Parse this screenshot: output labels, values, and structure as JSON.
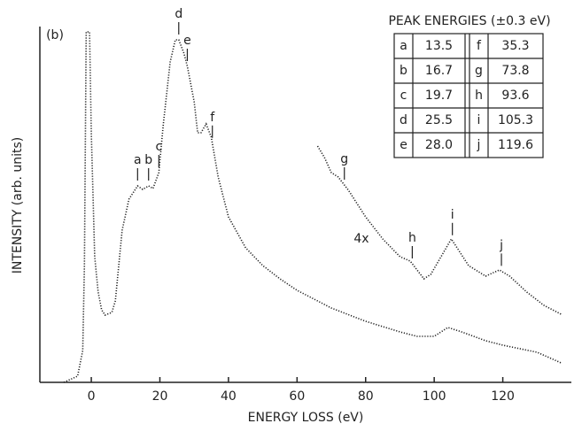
{
  "chart_data": {
    "type": "line",
    "panel_label": "(b)",
    "x_label": "ENERGY LOSS (eV)",
    "y_label": "INTENSITY (arb. units)",
    "annotation": "4x",
    "xlim": [
      -15,
      140
    ],
    "xticks": [
      0,
      20,
      40,
      60,
      80,
      100,
      120
    ],
    "ylim": [
      0,
      100
    ],
    "color": "#222222",
    "series": [
      {
        "x": [
          -8,
          -4,
          -2.5,
          -2,
          -1.5,
          -0.5,
          0,
          1,
          2,
          3,
          4,
          6,
          7,
          9,
          11,
          13.5,
          15,
          16.7,
          18,
          19.7,
          21,
          23,
          24.5,
          25.5,
          27,
          28,
          30,
          31,
          32,
          33.5,
          35,
          37,
          40,
          45,
          50,
          55,
          60,
          70,
          80,
          90,
          95,
          100,
          104,
          108,
          115,
          120,
          130,
          137
        ],
        "values": [
          0,
          1.75,
          9,
          33,
          99,
          99,
          70,
          35.5,
          25.5,
          20.5,
          19,
          19.75,
          23,
          43,
          51.75,
          55.5,
          54.5,
          55.5,
          54.75,
          59.25,
          73,
          90.5,
          96.75,
          96.75,
          93,
          89.25,
          79.25,
          70.5,
          70.5,
          73,
          69.25,
          58,
          46.75,
          38,
          33,
          29.25,
          26,
          21,
          17.25,
          14.25,
          13,
          13,
          15.5,
          14.25,
          11.75,
          10.5,
          8.5,
          5.5
        ]
      },
      {
        "x": [
          66,
          68,
          70,
          72,
          75,
          80,
          85,
          90,
          93,
          95,
          97,
          99,
          102,
          105,
          107,
          110,
          115,
          119,
          122,
          127,
          132,
          137
        ],
        "values": [
          66.75,
          63.5,
          59.25,
          58,
          54.25,
          46.75,
          40.5,
          35.5,
          34.25,
          31.75,
          29.25,
          30.5,
          35.5,
          40.5,
          37.5,
          33,
          30,
          31.75,
          30,
          25.5,
          21.75,
          19.25
        ]
      }
    ],
    "peak_table": {
      "title": "PEAK ENERGIES (±0.3 eV)",
      "labels": [
        "a",
        "b",
        "c",
        "d",
        "e",
        "f",
        "g",
        "h",
        "i",
        "j"
      ],
      "energies": [
        13.5,
        16.7,
        19.7,
        25.5,
        28.0,
        35.3,
        73.8,
        93.6,
        105.3,
        119.6
      ],
      "energy_labels": [
        "13.5",
        "16.7",
        "19.7",
        "25.5",
        "28.0",
        "35.3",
        "73.8",
        "93.6",
        "105.3",
        "119.6"
      ]
    }
  }
}
